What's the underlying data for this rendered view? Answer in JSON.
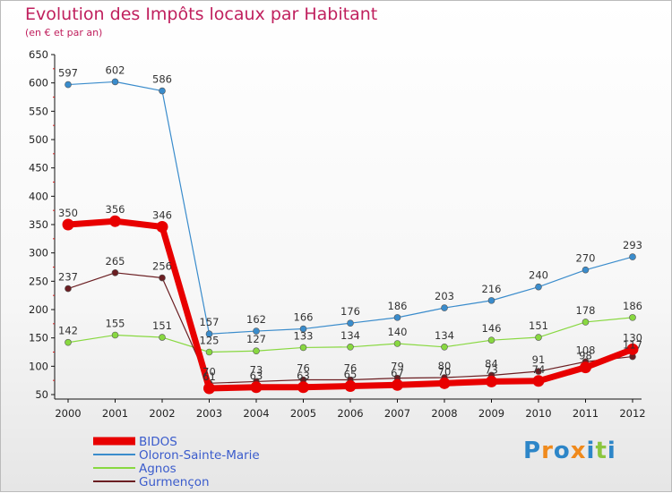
{
  "title": "Evolution des Impôts locaux par Habitant",
  "subtitle": "(en € et par an)",
  "logo": {
    "letters": [
      "P",
      "r",
      "o",
      "x",
      "i",
      "t",
      "i"
    ],
    "colors": [
      "#2d86c8",
      "#f08a1c",
      "#2d86c8",
      "#f08a1c",
      "#2d86c8",
      "#8cc63f",
      "#2d86c8"
    ]
  },
  "chart_data": {
    "type": "line",
    "title": "Evolution des Impôts locaux par Habitant",
    "subtitle": "(en € et par an)",
    "xlabel": "",
    "ylabel": "",
    "x": [
      "2000",
      "2001",
      "2002",
      "2003",
      "2004",
      "2005",
      "2006",
      "2007",
      "2008",
      "2009",
      "2010",
      "2011",
      "2012"
    ],
    "ylim": [
      50,
      650
    ],
    "yticks": [
      50,
      100,
      150,
      200,
      250,
      300,
      350,
      400,
      450,
      500,
      550,
      600,
      650
    ],
    "grid": false,
    "legend_position": "bottom-left",
    "series": [
      {
        "name": "BIDOS",
        "color": "#e80000",
        "values": [
          350,
          356,
          346,
          61,
          63,
          63,
          65,
          67,
          70,
          73,
          74,
          98,
          130
        ],
        "labels": [
          "350",
          "356",
          "346",
          "61",
          "63",
          "63",
          "65",
          "67",
          "70",
          "73",
          "74",
          "98",
          "130"
        ]
      },
      {
        "name": "Oloron-Sainte-Marie",
        "color": "#3a8ccc",
        "values": [
          597,
          602,
          586,
          157,
          162,
          166,
          176,
          186,
          203,
          216,
          240,
          270,
          293
        ],
        "labels": [
          "597",
          "602",
          "586",
          "157",
          "162",
          "166",
          "176",
          "186",
          "203",
          "216",
          "240",
          "270",
          "293"
        ]
      },
      {
        "name": "Agnos",
        "color": "#88d840",
        "values": [
          142,
          155,
          151,
          125,
          127,
          133,
          134,
          140,
          134,
          146,
          151,
          178,
          186
        ],
        "labels": [
          "142",
          "155",
          "151",
          "125",
          "127",
          "133",
          "134",
          "140",
          "134",
          "146",
          "151",
          "178",
          "186"
        ]
      },
      {
        "name": "Gurmençon",
        "color": "#6b1e22",
        "values": [
          237,
          265,
          256,
          70,
          73,
          76,
          76,
          79,
          80,
          84,
          91,
          108,
          117
        ],
        "labels": [
          "237",
          "265",
          "256",
          "70",
          "73",
          "76",
          "76",
          "79",
          "80",
          "84",
          "91",
          "108",
          "117"
        ]
      }
    ]
  }
}
